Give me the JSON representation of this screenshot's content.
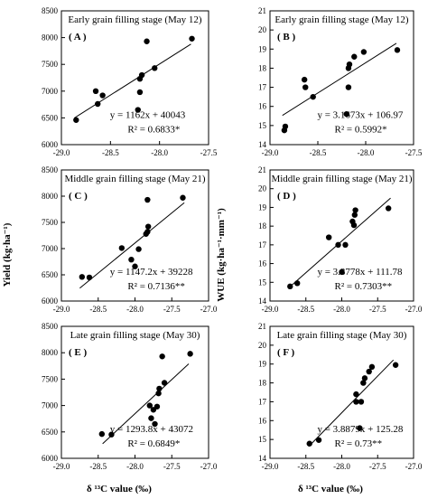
{
  "figure": {
    "ylabel_left": "Yield (kg·ha⁻¹)",
    "ylabel_right": "WUE (kg·ha⁻¹·mm⁻¹)",
    "xlabel": "δ ¹³C value (‰)"
  },
  "chart_data": [
    {
      "id": "A",
      "type": "scatter",
      "panel_label": "( A )",
      "title": "Early grain filling stage (May 12)",
      "equation": "y = 1162x + 40043",
      "r2": "R² = 0.6833*",
      "xlim": [
        -29.0,
        -27.5
      ],
      "ylim": [
        6000,
        8500
      ],
      "xticks": [
        -29.0,
        -28.5,
        -28.0,
        -27.5
      ],
      "xticklabels": [
        "-29.0",
        "-28.5",
        "-28.0",
        "-27.5"
      ],
      "yticks": [
        6000,
        6500,
        7000,
        7500,
        8000,
        8500
      ],
      "points": [
        [
          -28.85,
          6460
        ],
        [
          -28.63,
          6760
        ],
        [
          -28.65,
          7000
        ],
        [
          -28.58,
          6920
        ],
        [
          -28.22,
          6650
        ],
        [
          -28.2,
          6980
        ],
        [
          -28.2,
          7230
        ],
        [
          -28.18,
          7300
        ],
        [
          -28.05,
          7430
        ],
        [
          -28.13,
          7930
        ],
        [
          -27.67,
          7980
        ]
      ],
      "fit": {
        "slope": 1162,
        "intercept": 40043,
        "x_range": [
          -28.87,
          -27.68
        ]
      }
    },
    {
      "id": "B",
      "type": "scatter",
      "panel_label": "( B )",
      "title": "Early grain filling stage (May 12)",
      "equation": "y = 3.1673x + 106.97",
      "r2": "R² = 0.5992*",
      "xlim": [
        -29.0,
        -27.5
      ],
      "ylim": [
        14,
        21
      ],
      "xticks": [
        -29.0,
        -28.5,
        -28.0,
        -27.5
      ],
      "xticklabels": [
        "-29.0",
        "-28.5",
        "-28.0",
        "-27.5"
      ],
      "yticks": [
        14,
        15,
        16,
        17,
        18,
        19,
        20,
        21
      ],
      "points": [
        [
          -28.85,
          14.75
        ],
        [
          -28.84,
          14.95
        ],
        [
          -28.63,
          17.0
        ],
        [
          -28.64,
          17.4
        ],
        [
          -28.55,
          16.5
        ],
        [
          -28.2,
          15.6
        ],
        [
          -28.18,
          17.0
        ],
        [
          -28.18,
          18.0
        ],
        [
          -28.17,
          18.2
        ],
        [
          -28.12,
          18.6
        ],
        [
          -28.02,
          18.85
        ],
        [
          -27.67,
          18.95
        ]
      ],
      "fit": {
        "slope": 3.1673,
        "intercept": 106.97,
        "x_range": [
          -28.87,
          -27.68
        ]
      }
    },
    {
      "id": "C",
      "type": "scatter",
      "panel_label": "( C )",
      "title": "Middle grain filling stage (May 21)",
      "equation": "y = 1147.2x + 39228",
      "r2": "R² = 0.7136**",
      "xlim": [
        -29.0,
        -27.0
      ],
      "ylim": [
        6000,
        8500
      ],
      "xticks": [
        -29.0,
        -28.5,
        -28.0,
        -27.5,
        -27.0
      ],
      "xticklabels": [
        "-29.0",
        "-28.5",
        "-28.0",
        "-27.5",
        "-27.0"
      ],
      "yticks": [
        6000,
        6500,
        7000,
        7500,
        8000,
        8500
      ],
      "points": [
        [
          -28.72,
          6460
        ],
        [
          -28.62,
          6450
        ],
        [
          -28.18,
          7010
        ],
        [
          -28.05,
          6790
        ],
        [
          -28.0,
          6660
        ],
        [
          -27.95,
          6990
        ],
        [
          -27.85,
          7280
        ],
        [
          -27.83,
          7320
        ],
        [
          -27.82,
          7420
        ],
        [
          -27.83,
          7930
        ],
        [
          -27.35,
          7970
        ]
      ],
      "fit": {
        "slope": 1147.2,
        "intercept": 39228,
        "x_range": [
          -28.75,
          -27.33
        ]
      }
    },
    {
      "id": "D",
      "type": "scatter",
      "panel_label": "( D )",
      "title": "Middle grain filling stage (May 21)",
      "equation": "y = 3.3778x + 111.78",
      "r2": "R² = 0.7303**",
      "xlim": [
        -29.0,
        -27.0
      ],
      "ylim": [
        14,
        21
      ],
      "xticks": [
        -29.0,
        -28.5,
        -28.0,
        -27.5,
        -27.0
      ],
      "xticklabels": [
        "-29.0",
        "-28.5",
        "-28.0",
        "-27.5",
        "-27.0"
      ],
      "yticks": [
        14,
        15,
        16,
        17,
        18,
        19,
        20,
        21
      ],
      "points": [
        [
          -28.72,
          14.78
        ],
        [
          -28.62,
          14.95
        ],
        [
          -28.18,
          17.4
        ],
        [
          -28.05,
          17.0
        ],
        [
          -28.0,
          15.55
        ],
        [
          -27.95,
          17.0
        ],
        [
          -27.85,
          18.25
        ],
        [
          -27.83,
          18.05
        ],
        [
          -27.82,
          18.6
        ],
        [
          -27.81,
          18.85
        ],
        [
          -27.35,
          18.95
        ]
      ],
      "fit": {
        "slope": 3.3778,
        "intercept": 111.78,
        "x_range": [
          -28.74,
          -27.32
        ]
      }
    },
    {
      "id": "E",
      "type": "scatter",
      "panel_label": "( E )",
      "title": "Late grain filling stage (May 30)",
      "equation": "y = 1293.8x + 43072",
      "r2": "R² = 0.6849*",
      "xlim": [
        -29.0,
        -27.0
      ],
      "ylim": [
        6000,
        8500
      ],
      "xticks": [
        -29.0,
        -28.5,
        -28.0,
        -27.5,
        -27.0
      ],
      "xticklabels": [
        "-29.0",
        "-28.5",
        "-28.0",
        "-27.5",
        "-27.0"
      ],
      "yticks": [
        6000,
        6500,
        7000,
        7500,
        8000,
        8500
      ],
      "points": [
        [
          -28.45,
          6460
        ],
        [
          -28.32,
          6450
        ],
        [
          -27.8,
          7000
        ],
        [
          -27.78,
          6760
        ],
        [
          -27.75,
          6920
        ],
        [
          -27.73,
          6650
        ],
        [
          -27.7,
          6980
        ],
        [
          -27.68,
          7230
        ],
        [
          -27.67,
          7320
        ],
        [
          -27.6,
          7430
        ],
        [
          -27.63,
          7930
        ],
        [
          -27.25,
          7980
        ]
      ],
      "fit": {
        "slope": 1293.8,
        "intercept": 43072,
        "x_range": [
          -28.44,
          -27.27
        ]
      }
    },
    {
      "id": "F",
      "type": "scatter",
      "panel_label": "( F )",
      "title": "Late grain filling stage (May 30)",
      "equation": "y = 3.8879x + 125.28",
      "r2": "R² = 0.73**",
      "xlim": [
        -29.0,
        -27.0
      ],
      "ylim": [
        14,
        21
      ],
      "xticks": [
        -29.0,
        -28.5,
        -28.0,
        -27.5,
        -27.0
      ],
      "xticklabels": [
        "-29.0",
        "-28.5",
        "-28.0",
        "-27.5",
        "-27.0"
      ],
      "yticks": [
        14,
        15,
        16,
        17,
        18,
        19,
        20,
        21
      ],
      "points": [
        [
          -28.45,
          14.78
        ],
        [
          -28.32,
          14.97
        ],
        [
          -27.8,
          17.0
        ],
        [
          -27.8,
          17.4
        ],
        [
          -27.75,
          15.6
        ],
        [
          -27.73,
          17.0
        ],
        [
          -27.7,
          18.0
        ],
        [
          -27.68,
          18.25
        ],
        [
          -27.62,
          18.6
        ],
        [
          -27.58,
          18.85
        ],
        [
          -27.25,
          18.95
        ]
      ],
      "fit": {
        "slope": 3.8879,
        "intercept": 125.28,
        "x_range": [
          -28.46,
          -27.28
        ]
      }
    }
  ]
}
